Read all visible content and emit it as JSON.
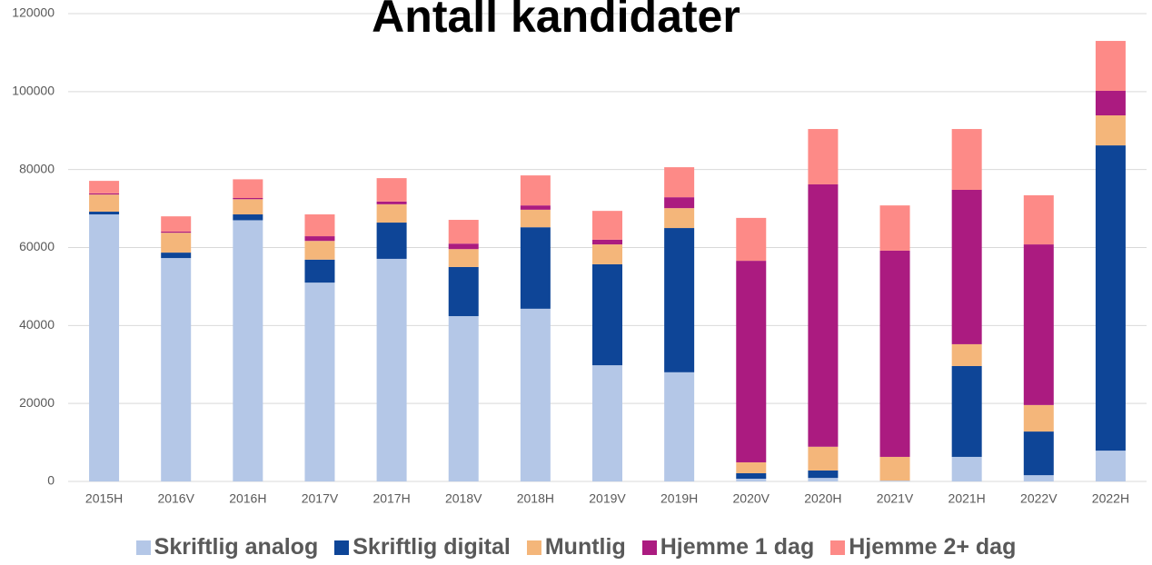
{
  "chart_data": {
    "type": "stacked_bar",
    "title": "Antall kandidater",
    "categories": [
      "2015H",
      "2016V",
      "2016H",
      "2017V",
      "2017H",
      "2018V",
      "2018H",
      "2019V",
      "2019H",
      "2020V",
      "2020H",
      "2021V",
      "2021H",
      "2022V",
      "2022H"
    ],
    "series": [
      {
        "name": "Skriftlig analog",
        "color": "#b4c7e7",
        "values": [
          68500,
          57300,
          67000,
          51000,
          57100,
          42400,
          44300,
          29800,
          28000,
          700,
          900,
          200,
          6300,
          1600,
          7900
        ]
      },
      {
        "name": "Skriftlig digital",
        "color": "#0e4597",
        "values": [
          700,
          1400,
          1500,
          5900,
          9300,
          12600,
          20900,
          25900,
          37000,
          1400,
          1900,
          0,
          23300,
          11200,
          78300
        ]
      },
      {
        "name": "Muntlig",
        "color": "#f4b67a",
        "values": [
          4400,
          5100,
          3900,
          4800,
          4700,
          4600,
          4500,
          5100,
          5100,
          2800,
          6100,
          6100,
          5600,
          6800,
          7700
        ]
      },
      {
        "name": "Hjemme 1 dag",
        "color": "#ab1b80",
        "values": [
          300,
          300,
          300,
          1200,
          700,
          1400,
          1100,
          1200,
          2800,
          51700,
          67300,
          52900,
          39600,
          41200,
          6300
        ]
      },
      {
        "name": "Hjemme 2+ dag",
        "color": "#fd8a87",
        "values": [
          3200,
          3900,
          4800,
          5600,
          6000,
          6100,
          7700,
          7400,
          7700,
          11000,
          14200,
          11600,
          15600,
          12600,
          12800
        ]
      }
    ],
    "ylim": [
      0,
      120000
    ],
    "yticks": [
      0,
      20000,
      40000,
      60000,
      80000,
      100000,
      120000
    ],
    "grid": true,
    "legend": "bottom"
  }
}
